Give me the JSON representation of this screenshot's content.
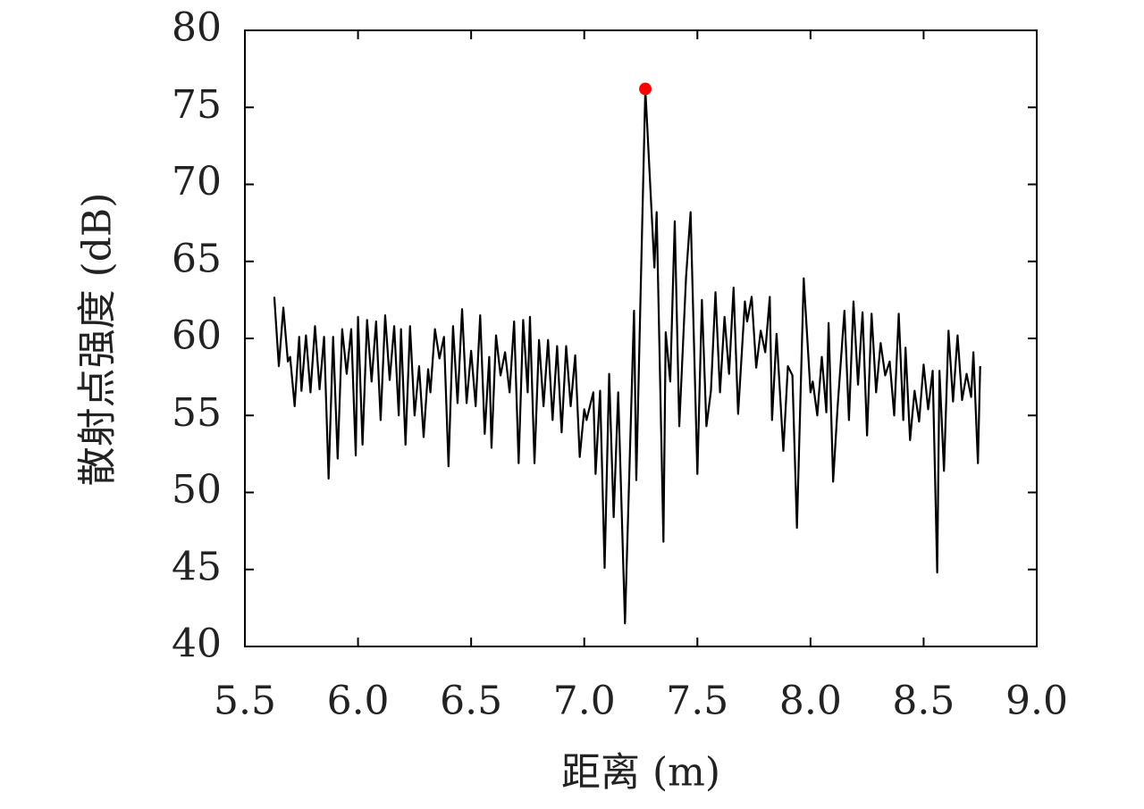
{
  "chart_data": {
    "type": "line",
    "xlabel": "距离 (m)",
    "ylabel": "散射点强度 (dB)",
    "xlim": [
      5.5,
      9.0
    ],
    "ylim": [
      40,
      80
    ],
    "xticks": [
      5.5,
      {
        "value": 6,
        "label": "6.0"
      },
      6.5,
      {
        "value": 7,
        "label": "7.0"
      },
      7.5,
      {
        "value": 8,
        "label": "8.0"
      },
      8.5,
      {
        "value": 9,
        "label": "9.0"
      }
    ],
    "yticks": [
      40,
      45,
      50,
      55,
      60,
      65,
      70,
      75,
      80
    ],
    "grid": false,
    "x": [
      5.63,
      5.65,
      5.67,
      5.69,
      5.7,
      5.72,
      5.74,
      5.75,
      5.77,
      5.79,
      5.81,
      5.83,
      5.85,
      5.87,
      5.89,
      5.91,
      5.93,
      5.95,
      5.97,
      5.99,
      6.0,
      6.02,
      6.04,
      6.06,
      6.08,
      6.1,
      6.12,
      6.14,
      6.16,
      6.18,
      6.19,
      6.21,
      6.23,
      6.25,
      6.27,
      6.29,
      6.31,
      6.32,
      6.34,
      6.36,
      6.38,
      6.4,
      6.42,
      6.44,
      6.46,
      6.48,
      6.5,
      6.52,
      6.54,
      6.56,
      6.58,
      6.59,
      6.61,
      6.63,
      6.65,
      6.67,
      6.69,
      6.71,
      6.73,
      6.75,
      6.76,
      6.78,
      6.8,
      6.82,
      6.84,
      6.86,
      6.88,
      6.9,
      6.92,
      6.94,
      6.96,
      6.98,
      7.0,
      7.01,
      7.04,
      7.05,
      7.07,
      7.09,
      7.11,
      7.13,
      7.15,
      7.18,
      7.22,
      7.23,
      7.27,
      7.31,
      7.32,
      7.35,
      7.36,
      7.38,
      7.4,
      7.42,
      7.45,
      7.47,
      7.5,
      7.52,
      7.54,
      7.56,
      7.58,
      7.6,
      7.62,
      7.64,
      7.66,
      7.68,
      7.71,
      7.72,
      7.74,
      7.76,
      7.78,
      7.8,
      7.82,
      7.83,
      7.85,
      7.88,
      7.9,
      7.92,
      7.94,
      7.97,
      8.0,
      8.01,
      8.03,
      8.05,
      8.07,
      8.08,
      8.1,
      8.12,
      8.15,
      8.17,
      8.19,
      8.21,
      8.23,
      8.25,
      8.27,
      8.29,
      8.31,
      8.33,
      8.35,
      8.37,
      8.39,
      8.41,
      8.42,
      8.44,
      8.46,
      8.48,
      8.5,
      8.52,
      8.54,
      8.56,
      8.57,
      8.59,
      8.61,
      8.63,
      8.65,
      8.67,
      8.69,
      8.71,
      8.72,
      8.74,
      8.75
    ],
    "series": [
      {
        "color": "#000000",
        "values": [
          62.7,
          58.2,
          62.0,
          58.5,
          58.8,
          55.6,
          60.1,
          56.6,
          60.2,
          56.5,
          60.8,
          56.7,
          60.1,
          50.9,
          60.1,
          52.2,
          60.6,
          57.7,
          60.6,
          52.4,
          61.4,
          53.1,
          61.2,
          57.2,
          61.1,
          54.7,
          61.5,
          57.3,
          60.8,
          55.0,
          60.6,
          53.1,
          60.8,
          55.0,
          58.2,
          53.6,
          58.0,
          56.5,
          60.6,
          58.7,
          60.1,
          51.7,
          60.8,
          55.8,
          61.9,
          55.8,
          59.2,
          55.6,
          61.5,
          53.8,
          58.8,
          52.9,
          60.2,
          57.6,
          59.1,
          56.5,
          61.1,
          51.9,
          61.2,
          56.5,
          61.4,
          51.9,
          59.9,
          55.6,
          59.9,
          54.7,
          59.5,
          53.9,
          59.5,
          55.6,
          58.9,
          52.3,
          55.4,
          54.7,
          56.5,
          51.2,
          56.6,
          45.1,
          57.7,
          48.4,
          56.5,
          41.5,
          61.8,
          50.8,
          76.2,
          64.6,
          68.2,
          46.8,
          60.4,
          57.2,
          67.6,
          54.3,
          64.0,
          68.2,
          51.2,
          62.5,
          54.3,
          56.6,
          63.0,
          56.5,
          61.4,
          57.7,
          63.3,
          55.1,
          62.4,
          61.1,
          62.7,
          58.1,
          60.5,
          59.1,
          62.7,
          54.7,
          60.3,
          52.7,
          58.2,
          57.6,
          47.7,
          63.9,
          56.5,
          57.2,
          55.0,
          58.8,
          55.2,
          61.0,
          50.7,
          55.6,
          61.8,
          54.7,
          62.4,
          57.0,
          61.7,
          53.7,
          61.6,
          56.5,
          59.7,
          57.6,
          58.5,
          55.0,
          61.6,
          54.7,
          59.4,
          53.4,
          56.6,
          54.6,
          58.3,
          55.4,
          57.9,
          44.8,
          57.9,
          51.4,
          60.5,
          55.9,
          60.2,
          56.0,
          57.7,
          56.2,
          59.1,
          51.9,
          58.2
        ]
      }
    ],
    "peak": {
      "x": 7.27,
      "y": 76.2,
      "color": "#ff0000"
    }
  }
}
